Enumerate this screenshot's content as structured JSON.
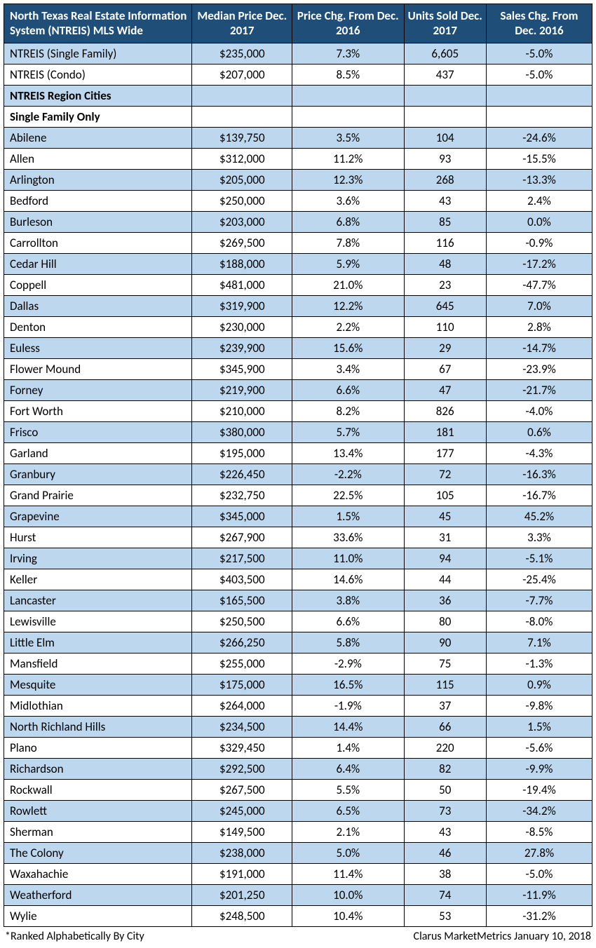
{
  "table": {
    "col_widths": [
      "32%",
      "17%",
      "19%",
      "14%",
      "18%"
    ],
    "header_bg": "#1f4e79",
    "header_fg": "#ffffff",
    "shade_bg": "#bdd7ee",
    "unshade_bg": "#ffffff",
    "border_color": "#000000",
    "columns": [
      "North Texas Real Estate Information System (NTREIS) MLS Wide",
      "Median Price Dec. 2017",
      "Price Chg. From Dec. 2016",
      "Units Sold Dec. 2017",
      "Sales Chg. From Dec. 2016"
    ],
    "rows": [
      {
        "type": "data",
        "shade": true,
        "cells": [
          "NTREIS (Single Family)",
          "$235,000",
          "7.3%",
          "6,605",
          "-5.0%"
        ]
      },
      {
        "type": "data",
        "shade": false,
        "cells": [
          "NTREIS (Condo)",
          "$207,000",
          "8.5%",
          "437",
          "-5.0%"
        ]
      },
      {
        "type": "section",
        "shade": true,
        "cells": [
          "NTREIS Region Cities",
          "",
          "",
          "",
          ""
        ]
      },
      {
        "type": "section",
        "shade": false,
        "cells": [
          "Single Family Only",
          "",
          "",
          "",
          ""
        ]
      },
      {
        "type": "data",
        "shade": true,
        "cells": [
          "Abilene",
          "$139,750",
          "3.5%",
          "104",
          "-24.6%"
        ]
      },
      {
        "type": "data",
        "shade": false,
        "cells": [
          "Allen",
          "$312,000",
          "11.2%",
          "93",
          "-15.5%"
        ]
      },
      {
        "type": "data",
        "shade": true,
        "cells": [
          "Arlington",
          "$205,000",
          "12.3%",
          "268",
          "-13.3%"
        ]
      },
      {
        "type": "data",
        "shade": false,
        "cells": [
          "Bedford",
          "$250,000",
          "3.6%",
          "43",
          "2.4%"
        ]
      },
      {
        "type": "data",
        "shade": true,
        "cells": [
          "Burleson",
          "$203,000",
          "6.8%",
          "85",
          "0.0%"
        ]
      },
      {
        "type": "data",
        "shade": false,
        "cells": [
          "Carrollton",
          "$269,500",
          "7.8%",
          "116",
          "-0.9%"
        ]
      },
      {
        "type": "data",
        "shade": true,
        "cells": [
          "Cedar Hill",
          "$188,000",
          "5.9%",
          "48",
          "-17.2%"
        ]
      },
      {
        "type": "data",
        "shade": false,
        "cells": [
          "Coppell",
          "$481,000",
          "21.0%",
          "23",
          "-47.7%"
        ]
      },
      {
        "type": "data",
        "shade": true,
        "cells": [
          "Dallas",
          "$319,900",
          "12.2%",
          "645",
          "7.0%"
        ]
      },
      {
        "type": "data",
        "shade": false,
        "cells": [
          "Denton",
          "$230,000",
          "2.2%",
          "110",
          "2.8%"
        ]
      },
      {
        "type": "data",
        "shade": true,
        "cells": [
          "Euless",
          "$239,900",
          "15.6%",
          "29",
          "-14.7%"
        ]
      },
      {
        "type": "data",
        "shade": false,
        "cells": [
          "Flower Mound",
          "$345,900",
          "3.4%",
          "67",
          "-23.9%"
        ]
      },
      {
        "type": "data",
        "shade": true,
        "cells": [
          "Forney",
          "$219,900",
          "6.6%",
          "47",
          "-21.7%"
        ]
      },
      {
        "type": "data",
        "shade": false,
        "cells": [
          "Fort Worth",
          "$210,000",
          "8.2%",
          "826",
          "-4.0%"
        ]
      },
      {
        "type": "data",
        "shade": true,
        "cells": [
          "Frisco",
          "$380,000",
          "5.7%",
          "181",
          "0.6%"
        ]
      },
      {
        "type": "data",
        "shade": false,
        "cells": [
          "Garland",
          "$195,000",
          "13.4%",
          "177",
          "-4.3%"
        ]
      },
      {
        "type": "data",
        "shade": true,
        "cells": [
          "Granbury",
          "$226,450",
          "-2.2%",
          "72",
          "-16.3%"
        ]
      },
      {
        "type": "data",
        "shade": false,
        "cells": [
          "Grand Prairie",
          "$232,750",
          "22.5%",
          "105",
          "-16.7%"
        ]
      },
      {
        "type": "data",
        "shade": true,
        "cells": [
          "Grapevine",
          "$345,000",
          "1.5%",
          "45",
          "45.2%"
        ]
      },
      {
        "type": "data",
        "shade": false,
        "cells": [
          "Hurst",
          "$267,900",
          "33.6%",
          "31",
          "3.3%"
        ]
      },
      {
        "type": "data",
        "shade": true,
        "cells": [
          "Irving",
          "$217,500",
          "11.0%",
          "94",
          "-5.1%"
        ]
      },
      {
        "type": "data",
        "shade": false,
        "cells": [
          "Keller",
          "$403,500",
          "14.6%",
          "44",
          "-25.4%"
        ]
      },
      {
        "type": "data",
        "shade": true,
        "cells": [
          "Lancaster",
          "$165,500",
          "3.8%",
          "36",
          "-7.7%"
        ]
      },
      {
        "type": "data",
        "shade": false,
        "cells": [
          "Lewisville",
          "$250,500",
          "6.6%",
          "80",
          "-8.0%"
        ]
      },
      {
        "type": "data",
        "shade": true,
        "cells": [
          "Little Elm",
          "$266,250",
          "5.8%",
          "90",
          "7.1%"
        ]
      },
      {
        "type": "data",
        "shade": false,
        "cells": [
          "Mansfield",
          "$255,000",
          "-2.9%",
          "75",
          "-1.3%"
        ]
      },
      {
        "type": "data",
        "shade": true,
        "cells": [
          "Mesquite",
          "$175,000",
          "16.5%",
          "115",
          "0.9%"
        ]
      },
      {
        "type": "data",
        "shade": false,
        "cells": [
          "Midlothian",
          "$264,000",
          "-1.9%",
          "37",
          "-9.8%"
        ]
      },
      {
        "type": "data",
        "shade": true,
        "cells": [
          "North Richland Hills",
          "$234,500",
          "14.4%",
          "66",
          "1.5%"
        ]
      },
      {
        "type": "data",
        "shade": false,
        "cells": [
          "Plano",
          "$329,450",
          "1.4%",
          "220",
          "-5.6%"
        ]
      },
      {
        "type": "data",
        "shade": true,
        "cells": [
          "Richardson",
          "$292,500",
          "6.4%",
          "82",
          "-9.9%"
        ]
      },
      {
        "type": "data",
        "shade": false,
        "cells": [
          "Rockwall",
          "$267,500",
          "5.5%",
          "50",
          "-19.4%"
        ]
      },
      {
        "type": "data",
        "shade": true,
        "cells": [
          "Rowlett",
          "$245,000",
          "6.5%",
          "73",
          "-34.2%"
        ]
      },
      {
        "type": "data",
        "shade": false,
        "cells": [
          "Sherman",
          "$149,500",
          "2.1%",
          "43",
          "-8.5%"
        ]
      },
      {
        "type": "data",
        "shade": true,
        "cells": [
          "The Colony",
          "$238,000",
          "5.0%",
          "46",
          "27.8%"
        ]
      },
      {
        "type": "data",
        "shade": false,
        "cells": [
          "Waxahachie",
          "$191,000",
          "11.4%",
          "38",
          "-5.0%"
        ]
      },
      {
        "type": "data",
        "shade": true,
        "cells": [
          "Weatherford",
          "$201,250",
          "10.0%",
          "74",
          "-11.9%"
        ]
      },
      {
        "type": "data",
        "shade": false,
        "cells": [
          "Wylie",
          "$248,500",
          "10.4%",
          "53",
          "-31.2%"
        ]
      }
    ]
  },
  "footer": {
    "left": "*Ranked Alphabetically By City",
    "right": "Clarus MarketMetrics January 10, 2018"
  }
}
